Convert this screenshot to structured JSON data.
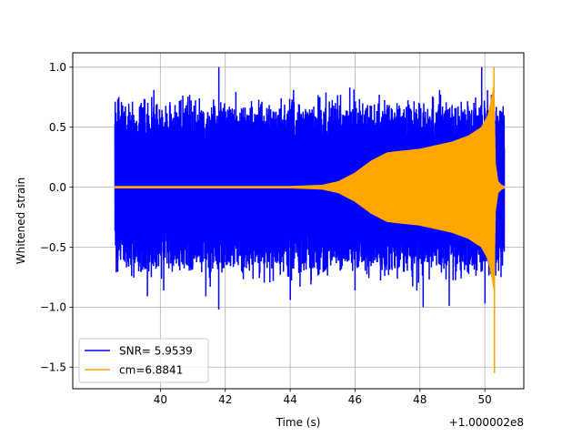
{
  "chart_data": {
    "type": "line",
    "xlabel": "Time (s)",
    "ylabel": "Whitened strain",
    "offset_label": "+1.000002e8",
    "xlim": [
      37.3,
      51.2
    ],
    "ylim": [
      -1.68,
      1.12
    ],
    "xticks": [
      40,
      42,
      44,
      46,
      48,
      50
    ],
    "xtick_labels": [
      "40",
      "42",
      "44",
      "46",
      "48",
      "50"
    ],
    "yticks": [
      -1.5,
      -1.0,
      -0.5,
      0.0,
      0.5,
      1.0
    ],
    "ytick_labels": [
      "−1.5",
      "−1.0",
      "−0.5",
      "0.0",
      "0.5",
      "1.0"
    ],
    "grid": true,
    "legend_position": "lower-left",
    "series": [
      {
        "name": "SNR= 5.9539",
        "color": "#0000ff",
        "description_values": {
          "x_range": [
            38.6,
            50.6
          ],
          "typical_amplitude": 0.45,
          "max": 1.0,
          "min": -1.02,
          "peaks_high": [
            [
              39.8,
              0.81
            ],
            [
              40.9,
              0.77
            ],
            [
              41.8,
              1.0
            ],
            [
              44.1,
              0.81
            ],
            [
              45.1,
              0.79
            ],
            [
              48.6,
              0.81
            ],
            [
              49.9,
              1.0
            ],
            [
              50.2,
              0.77
            ]
          ],
          "peaks_low": [
            [
              39.6,
              -0.91
            ],
            [
              40.1,
              -0.86
            ],
            [
              41.4,
              -0.91
            ],
            [
              41.8,
              -1.02
            ],
            [
              44.0,
              -0.94
            ],
            [
              46.0,
              -0.86
            ],
            [
              47.9,
              -0.86
            ],
            [
              48.1,
              -1.0
            ],
            [
              48.9,
              -0.99
            ],
            [
              50.0,
              -0.97
            ]
          ]
        }
      },
      {
        "name": "cm=6.8841",
        "color": "#ffa500",
        "description_values": {
          "x_range": [
            38.6,
            50.6
          ],
          "merger_time": 50.3,
          "envelope_points": [
            [
              38.6,
              0.01
            ],
            [
              44.0,
              0.01
            ],
            [
              45.0,
              0.02
            ],
            [
              45.5,
              0.05
            ],
            [
              46.0,
              0.12
            ],
            [
              46.5,
              0.22
            ],
            [
              47.0,
              0.29
            ],
            [
              47.3,
              0.3
            ],
            [
              48.0,
              0.32
            ],
            [
              48.5,
              0.35
            ],
            [
              49.0,
              0.38
            ],
            [
              49.5,
              0.43
            ],
            [
              49.9,
              0.5
            ],
            [
              50.1,
              0.6
            ],
            [
              50.2,
              0.72
            ],
            [
              50.25,
              0.8
            ],
            [
              50.28,
              0.85
            ],
            [
              50.32,
              0.2
            ],
            [
              50.4,
              0.05
            ],
            [
              50.5,
              0.02
            ],
            [
              50.6,
              0.01
            ]
          ],
          "max": 1.0,
          "min": -1.55
        }
      }
    ]
  }
}
